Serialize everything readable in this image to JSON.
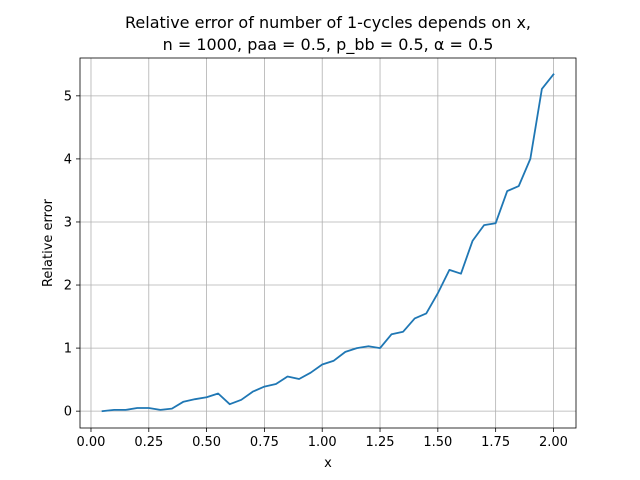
{
  "chart_data": {
    "type": "line",
    "title_line1": "Relative error of number of 1-cycles depends on x,",
    "title_line2": "n = 1000, paa = 0.5, p_bb = 0.5, α = 0.5",
    "xlabel": "x",
    "ylabel": "Relative error",
    "xlim": [
      -0.0475,
      2.0975
    ],
    "ylim": [
      -0.267,
      5.6
    ],
    "xticks": [
      0.0,
      0.25,
      0.5,
      0.75,
      1.0,
      1.25,
      1.5,
      1.75,
      2.0
    ],
    "xtick_labels": [
      "0.00",
      "0.25",
      "0.50",
      "0.75",
      "1.00",
      "1.25",
      "1.50",
      "1.75",
      "2.00"
    ],
    "yticks": [
      0,
      1,
      2,
      3,
      4,
      5
    ],
    "ytick_labels": [
      "0",
      "1",
      "2",
      "3",
      "4",
      "5"
    ],
    "grid": true,
    "line_color": "#1f77b4",
    "series": [
      {
        "x": [
          0.05,
          0.1,
          0.15,
          0.2,
          0.25,
          0.3,
          0.35,
          0.4,
          0.45,
          0.5,
          0.55,
          0.6,
          0.65,
          0.7,
          0.75,
          0.8,
          0.85,
          0.9,
          0.95,
          1.0,
          1.05,
          1.1,
          1.15,
          1.2,
          1.25,
          1.3,
          1.35,
          1.4,
          1.45,
          1.5,
          1.55,
          1.6,
          1.65,
          1.7,
          1.75,
          1.8,
          1.85,
          1.9,
          1.95,
          2.0
        ],
        "values": [
          0.0,
          0.02,
          0.02,
          0.05,
          0.05,
          0.02,
          0.04,
          0.15,
          0.19,
          0.22,
          0.28,
          0.11,
          0.18,
          0.31,
          0.39,
          0.43,
          0.55,
          0.51,
          0.61,
          0.74,
          0.8,
          0.94,
          1.0,
          1.03,
          1.0,
          1.22,
          1.26,
          1.47,
          1.55,
          1.87,
          2.24,
          2.18,
          2.7,
          2.95,
          2.98,
          3.49,
          3.57,
          4.0,
          5.11,
          5.34
        ]
      }
    ]
  }
}
